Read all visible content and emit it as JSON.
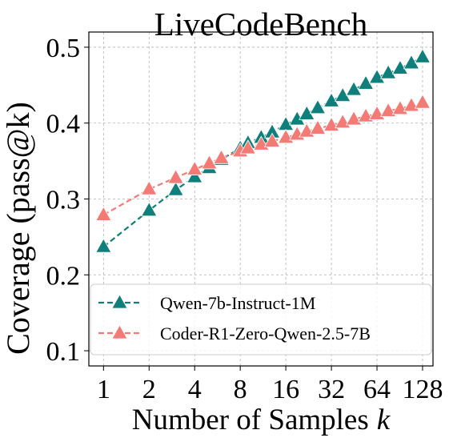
{
  "chart_data": {
    "type": "line",
    "title": "LiveCodeBench",
    "xlabel": "Number of Samples",
    "xlabel_var": "k",
    "ylabel": "Coverage (pass@k)",
    "x_scale": "log2",
    "xlim": [
      0.8,
      150
    ],
    "ylim": [
      0.08,
      0.52
    ],
    "x_ticks": [
      1,
      2,
      4,
      8,
      16,
      32,
      64,
      128
    ],
    "x_tick_labels": [
      "1",
      "2",
      "4",
      "8",
      "16",
      "32",
      "64",
      "128"
    ],
    "y_ticks": [
      0.1,
      0.2,
      0.3,
      0.4,
      0.5
    ],
    "y_tick_labels": [
      "0.1",
      "0.2",
      "0.3",
      "0.4",
      "0.5"
    ],
    "grid": true,
    "legend_position": "lower-left",
    "series": [
      {
        "name": "Qwen-7b-Instruct-1M",
        "color": "#0e7f7b",
        "line_style": "dashed",
        "marker": "triangle-up",
        "x": [
          1,
          2,
          3,
          4,
          5,
          6,
          8,
          9,
          11,
          13,
          16,
          19,
          22,
          26,
          32,
          38,
          45,
          54,
          64,
          76,
          91,
          108,
          128
        ],
        "y": [
          0.237,
          0.285,
          0.312,
          0.329,
          0.341,
          0.352,
          0.367,
          0.374,
          0.381,
          0.388,
          0.398,
          0.405,
          0.412,
          0.42,
          0.429,
          0.436,
          0.444,
          0.452,
          0.46,
          0.466,
          0.472,
          0.479,
          0.487
        ]
      },
      {
        "name": "Coder-R1-Zero-Qwen-2.5-7B",
        "color": "#f47a75",
        "line_style": "dashed",
        "marker": "triangle-up",
        "x": [
          1,
          2,
          3,
          4,
          5,
          6,
          8,
          9,
          11,
          13,
          16,
          19,
          22,
          26,
          32,
          38,
          45,
          54,
          64,
          76,
          91,
          108,
          128
        ],
        "y": [
          0.279,
          0.313,
          0.328,
          0.339,
          0.347,
          0.354,
          0.363,
          0.367,
          0.372,
          0.376,
          0.381,
          0.385,
          0.389,
          0.393,
          0.397,
          0.401,
          0.405,
          0.409,
          0.412,
          0.416,
          0.419,
          0.423,
          0.427
        ]
      }
    ]
  }
}
